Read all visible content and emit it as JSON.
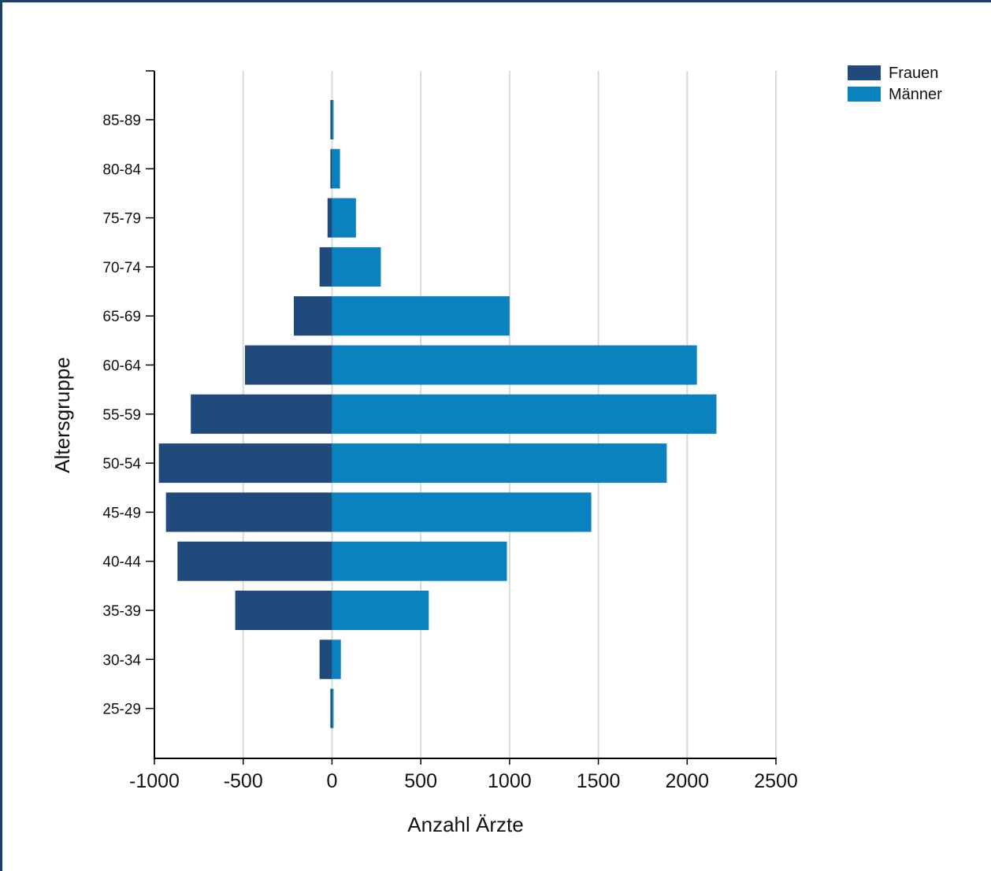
{
  "chart_data": {
    "type": "bar",
    "orientation": "horizontal",
    "subtype": "population-pyramid",
    "categories": [
      "85-89",
      "80-84",
      "75-79",
      "70-74",
      "65-69",
      "60-64",
      "55-59",
      "50-54",
      "45-49",
      "40-44",
      "35-39",
      "30-34",
      "25-29"
    ],
    "series": [
      {
        "name": "Frauen",
        "color": "#214a7c",
        "values": [
          -3,
          -3,
          -25,
          -70,
          -215,
          -490,
          -795,
          -975,
          -935,
          -870,
          -545,
          -70,
          -3
        ]
      },
      {
        "name": "Männer",
        "color": "#0a82bf",
        "values": [
          5,
          45,
          135,
          275,
          1000,
          2055,
          2165,
          1885,
          1460,
          985,
          545,
          50,
          3
        ]
      }
    ],
    "xlabel": "Anzahl Ärzte",
    "ylabel": "Altersgruppe",
    "xlim": [
      -1000,
      2500
    ],
    "xticks": [
      "-1000",
      "-500",
      "0",
      "500",
      "1000",
      "1500",
      "2000",
      "2500"
    ],
    "grid": true,
    "legend_position": "top-right"
  }
}
